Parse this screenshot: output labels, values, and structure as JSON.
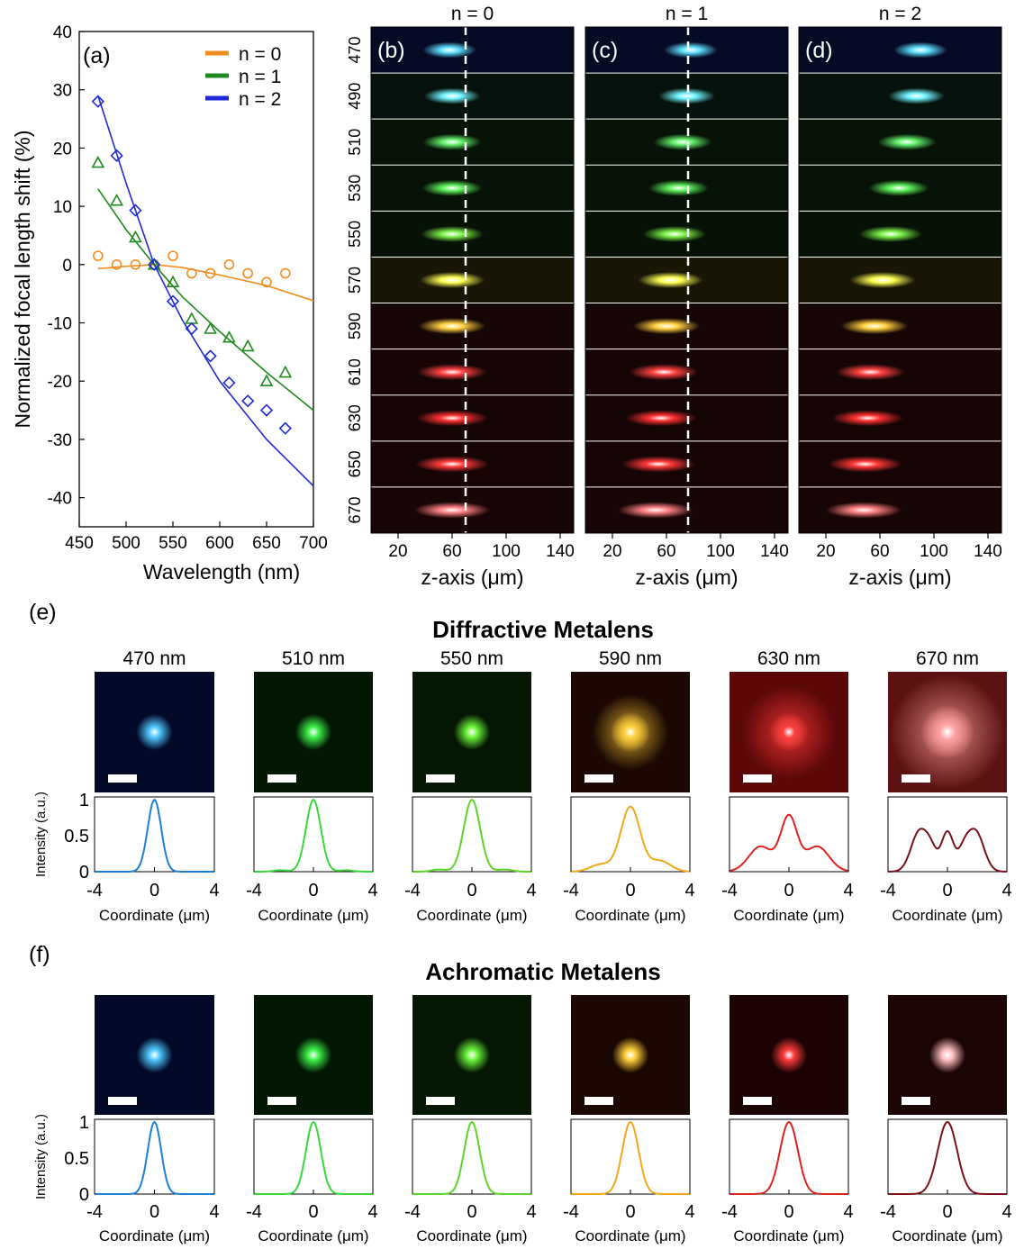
{
  "chart_data": [
    {
      "type": "scatter",
      "panel_label": "(a)",
      "xlabel": "Wavelength (nm)",
      "ylabel": "Normalized focal length shift (%)",
      "xlim": [
        450,
        700
      ],
      "ylim": [
        -45,
        40
      ],
      "x_ticks": [
        "450",
        "500",
        "550",
        "600",
        "650",
        "700"
      ],
      "y_ticks": [
        "40",
        "30",
        "20",
        "10",
        "0",
        "-10",
        "-20",
        "-30",
        "-40"
      ],
      "legend": [
        "n = 0",
        "n = 1",
        "n = 2"
      ],
      "legend_position": "top-right",
      "series": [
        {
          "name": "n = 0",
          "color": "#f28c1e",
          "marker": "circle",
          "x": [
            470,
            490,
            510,
            530,
            550,
            570,
            590,
            610,
            630,
            650,
            670
          ],
          "y": [
            1.5,
            0,
            0,
            0,
            1.5,
            -1.5,
            -1.5,
            0,
            -1.5,
            -3,
            -1.5
          ],
          "fit_x": [
            470,
            500,
            530,
            560,
            600,
            650,
            700
          ],
          "fit_y": [
            -0.7,
            -0.3,
            0,
            -0.5,
            -1.8,
            -3.6,
            -6.2
          ]
        },
        {
          "name": "n = 1",
          "color": "#1e8a1e",
          "marker": "triangle",
          "x": [
            470,
            490,
            510,
            530,
            550,
            570,
            590,
            610,
            630,
            650,
            670
          ],
          "y": [
            17.5,
            11,
            4.7,
            0,
            -3,
            -9.3,
            -11,
            -12.5,
            -14,
            -20,
            -18.5
          ],
          "fit_x": [
            470,
            500,
            530,
            560,
            600,
            650,
            700
          ],
          "fit_y": [
            13,
            6,
            0,
            -5.5,
            -11.5,
            -18.5,
            -25
          ]
        },
        {
          "name": "n = 2",
          "color": "#1f2ad6",
          "marker": "diamond",
          "x": [
            470,
            490,
            510,
            530,
            550,
            570,
            590,
            610,
            630,
            650,
            670
          ],
          "y": [
            28,
            18.7,
            9.3,
            0,
            -6.3,
            -11,
            -15.7,
            -20.3,
            -23.4,
            -25,
            -28.1
          ],
          "fit_x": [
            470,
            500,
            530,
            560,
            600,
            650,
            700
          ],
          "fit_y": [
            29,
            14,
            0,
            -9.5,
            -20,
            -30,
            -38
          ]
        }
      ]
    },
    {
      "type": "heatmap",
      "panels": [
        {
          "label": "(b)",
          "title": "n = 0",
          "x": [
            58,
            60,
            60,
            60,
            60,
            60,
            60,
            60,
            60,
            60,
            60
          ],
          "dashed_at": 70
        },
        {
          "label": "(c)",
          "title": "n = 1",
          "x": [
            78,
            75,
            72,
            69,
            66,
            63,
            60,
            58,
            56,
            54,
            52
          ],
          "dashed_at": 76
        },
        {
          "label": "(d)",
          "title": "n = 2",
          "x": [
            90,
            87,
            80,
            74,
            68,
            62,
            56,
            53,
            51,
            49,
            48
          ],
          "dashed_at": null
        }
      ],
      "row_labels": [
        "470",
        "490",
        "510",
        "530",
        "550",
        "570",
        "590",
        "610",
        "630",
        "650",
        "670"
      ],
      "row_colors": [
        "#5ee2ff",
        "#6ef2ff",
        "#63f06c",
        "#5ef05a",
        "#7af046",
        "#ffff50",
        "#ffd040",
        "#ff4040",
        "#ff3030",
        "#ff3838",
        "#ff8080"
      ],
      "row_bg": [
        "#050a25",
        "#06130c",
        "#061306",
        "#061306",
        "#071206",
        "#191606",
        "#160605",
        "#170505",
        "#160505",
        "#170505",
        "#180505"
      ],
      "xlabel": "z-axis (μm)",
      "x_ticks": [
        "20",
        "60",
        "100",
        "140"
      ],
      "xlim": [
        0,
        150
      ]
    },
    {
      "type": "line",
      "section_label": "(e)",
      "title": "Diffractive Metalens",
      "wavelengths": [
        "470 nm",
        "510 nm",
        "550 nm",
        "590 nm",
        "630 nm",
        "670 nm"
      ],
      "colors": [
        "#1e7fd6",
        "#3ad63a",
        "#5cd62a",
        "#f2a81a",
        "#e0221e",
        "#7a1018"
      ],
      "spot_colors": [
        "#4fc8ff",
        "#3cf24a",
        "#6cf53a",
        "#ffd03a",
        "#ff3a3a",
        "#ff9fa0"
      ],
      "spot_bg": [
        "#030a28",
        "#031803",
        "#041803",
        "#1c0802",
        "#5c0808",
        "#5c1212"
      ],
      "xlabel": "Coordinate (μm)",
      "ylabel": "Intensity (a.u.)",
      "x_ticks": [
        "-4",
        "0",
        "4"
      ],
      "y_ticks": [
        "1",
        "0.5",
        "0"
      ],
      "xlim": [
        -4,
        4
      ],
      "ylim": [
        0,
        1
      ]
    },
    {
      "type": "line",
      "section_label": "(f)",
      "title": "Achromatic Metalens",
      "colors": [
        "#1e7fd6",
        "#3ad63a",
        "#5cd62a",
        "#f2a81a",
        "#e0221e",
        "#7a1018"
      ],
      "spot_colors": [
        "#4fc8ff",
        "#3cf24a",
        "#6cf53a",
        "#ffd03a",
        "#ff3a3a",
        "#ffc0c0"
      ],
      "spot_bg": [
        "#030a28",
        "#031803",
        "#041803",
        "#1c0802",
        "#1c0303",
        "#1c0505"
      ],
      "xlabel": "Coordinate (μm)",
      "ylabel": "Intensity (a.u.)",
      "x_ticks": [
        "-4",
        "0",
        "4"
      ],
      "y_ticks": [
        "1",
        "0.5",
        "0"
      ],
      "xlim": [
        -4,
        4
      ],
      "ylim": [
        0,
        1
      ]
    }
  ]
}
